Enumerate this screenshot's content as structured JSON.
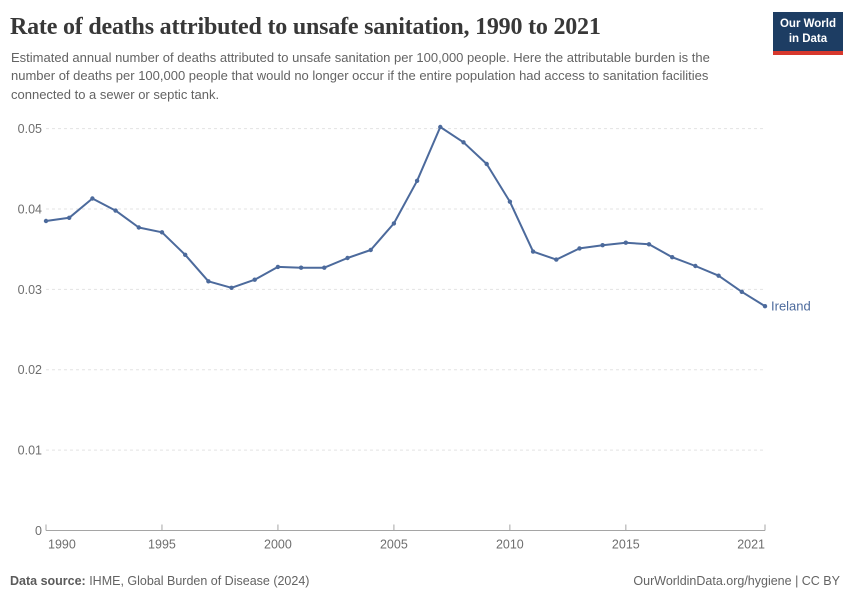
{
  "header": {
    "title": "Rate of deaths attributed to unsafe sanitation, 1990 to 2021",
    "subtitle": "Estimated annual number of deaths attributed to unsafe sanitation per 100,000 people. Here the attributable burden is the number of deaths per 100,000 people that would no longer occur if the entire population had access to sanitation facilities connected to a sewer or septic tank.",
    "logo": {
      "line1": "Our World",
      "line2": "in Data",
      "bg_color": "#1d3d63",
      "bar_color": "#d7382d"
    }
  },
  "chart_data": {
    "type": "line",
    "title": "Rate of deaths attributed to unsafe sanitation, 1990 to 2021",
    "entity": "Ireland",
    "x": [
      1990,
      1991,
      1992,
      1993,
      1994,
      1995,
      1996,
      1997,
      1998,
      1999,
      2000,
      2001,
      2002,
      2003,
      2004,
      2005,
      2006,
      2007,
      2008,
      2009,
      2010,
      2011,
      2012,
      2013,
      2014,
      2015,
      2016,
      2017,
      2018,
      2019,
      2020,
      2021
    ],
    "series": [
      {
        "name": "Ireland",
        "values": [
          0.0385,
          0.0389,
          0.0413,
          0.0398,
          0.0377,
          0.0371,
          0.0343,
          0.031,
          0.0302,
          0.0312,
          0.0328,
          0.0327,
          0.0327,
          0.0339,
          0.0349,
          0.0382,
          0.0435,
          0.0502,
          0.0483,
          0.0456,
          0.0409,
          0.0347,
          0.0337,
          0.0351,
          0.0355,
          0.0358,
          0.0356,
          0.034,
          0.0329,
          0.0317,
          0.0297,
          0.0279
        ]
      }
    ],
    "xlabel": "",
    "ylabel": "",
    "xlim": [
      1990,
      2021
    ],
    "ylim": [
      0,
      0.05
    ],
    "x_ticks": [
      1990,
      1995,
      2000,
      2005,
      2010,
      2015,
      2021
    ],
    "x_tick_labels": [
      "1990",
      "1995",
      "2000",
      "2005",
      "2010",
      "2015",
      "2021"
    ],
    "y_ticks": [
      0,
      0.01,
      0.02,
      0.03,
      0.04,
      0.05
    ],
    "y_tick_labels": [
      "0",
      "0.01",
      "0.02",
      "0.03",
      "0.04",
      "0.05"
    ],
    "grid": "horizontal dashed",
    "legend_position": "line-end-label",
    "line_color": "#4c6a9c",
    "axis_color": "#a5a5a5",
    "grid_color": "#e3e3e3",
    "tick_label_color": "#6e6e6e"
  },
  "footer": {
    "source_label": "Data source:",
    "source_text": " IHME, Global Burden of Disease (2024)",
    "credit": "OurWorldinData.org/hygiene | CC BY"
  }
}
